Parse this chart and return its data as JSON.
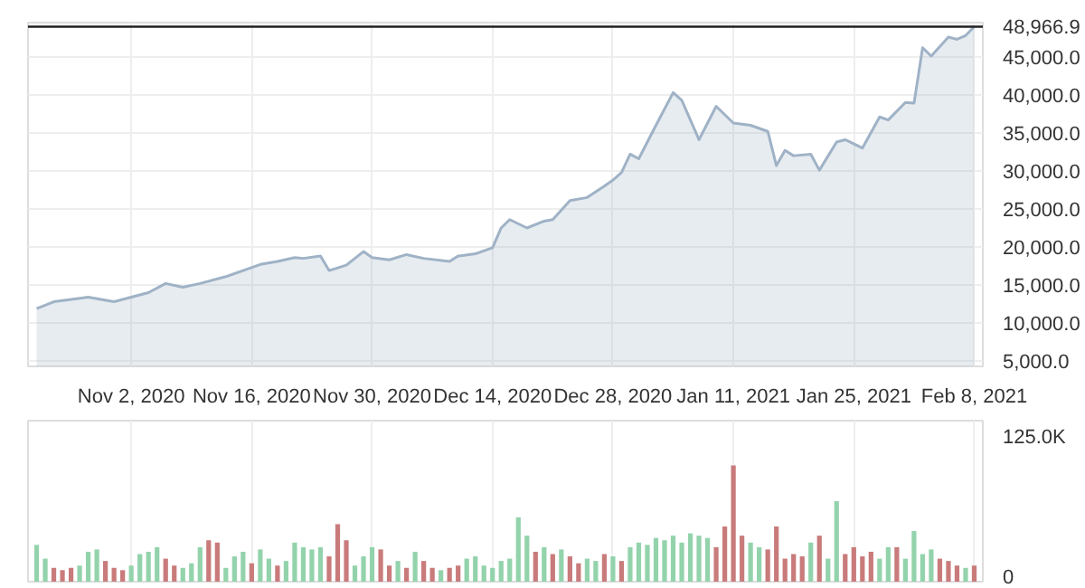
{
  "chart_data": [
    {
      "type": "area",
      "x": [
        "2020-10-22",
        "2020-10-24",
        "2020-10-28",
        "2020-10-31",
        "2020-11-04",
        "2020-11-06",
        "2020-11-08",
        "2020-11-10",
        "2020-11-13",
        "2020-11-17",
        "2020-11-19",
        "2020-11-21",
        "2020-11-22",
        "2020-11-24",
        "2020-11-25",
        "2020-11-27",
        "2020-11-29",
        "2020-11-30",
        "2020-12-02",
        "2020-12-04",
        "2020-12-06",
        "2020-12-09",
        "2020-12-10",
        "2020-12-12",
        "2020-12-14",
        "2020-12-15",
        "2020-12-16",
        "2020-12-18",
        "2020-12-20",
        "2020-12-21",
        "2020-12-23",
        "2020-12-25",
        "2020-12-27",
        "2020-12-28",
        "2020-12-29",
        "2020-12-30",
        "2020-12-31",
        "2021-01-02",
        "2021-01-04",
        "2021-01-05",
        "2021-01-07",
        "2021-01-09",
        "2021-01-11",
        "2021-01-13",
        "2021-01-15",
        "2021-01-16",
        "2021-01-17",
        "2021-01-18",
        "2021-01-20",
        "2021-01-21",
        "2021-01-23",
        "2021-01-24",
        "2021-01-26",
        "2021-01-28",
        "2021-01-29",
        "2021-01-31",
        "2021-02-01",
        "2021-02-02",
        "2021-02-03",
        "2021-02-05",
        "2021-02-06",
        "2021-02-07",
        "2021-02-08"
      ],
      "series": [
        {
          "color": "#9fb2c6",
          "values": [
            11900,
            12800,
            13400,
            12800,
            14000,
            15200,
            14700,
            15200,
            16100,
            17700,
            18100,
            18600,
            18500,
            18800,
            16900,
            17600,
            19400,
            18600,
            18300,
            19000,
            18500,
            18100,
            18800,
            19100,
            19900,
            22500,
            23600,
            22500,
            23400,
            23600,
            26100,
            26500,
            28000,
            28800,
            29800,
            32200,
            31600,
            36000,
            40300,
            39300,
            34100,
            38500,
            36300,
            36000,
            35200,
            30700,
            32700,
            32000,
            32200,
            30100,
            33800,
            34100,
            33000,
            37100,
            36700,
            39000,
            38900,
            46200,
            45100,
            47600,
            47300,
            47800,
            48966.9
          ]
        }
      ],
      "xlim": [
        "2020-10-21",
        "2021-02-09"
      ],
      "xticks": [
        {
          "value": "2020-11-02",
          "label": "Nov 2, 2020"
        },
        {
          "value": "2020-11-16",
          "label": "Nov 16, 2020"
        },
        {
          "value": "2020-11-30",
          "label": "Nov 30, 2020"
        },
        {
          "value": "2020-12-14",
          "label": "Dec 14, 2020"
        },
        {
          "value": "2020-12-28",
          "label": "Dec 28, 2020"
        },
        {
          "value": "2021-01-11",
          "label": "Jan 11, 2021"
        },
        {
          "value": "2021-01-25",
          "label": "Jan 25, 2021"
        },
        {
          "value": "2021-02-08",
          "label": "Feb 8, 2021"
        }
      ],
      "ylim": [
        4300,
        49500
      ],
      "yticks": [
        {
          "value": 5000,
          "label": "5,000.0"
        },
        {
          "value": 10000,
          "label": "10,000.0"
        },
        {
          "value": 15000,
          "label": "15,000.0"
        },
        {
          "value": 20000,
          "label": "20,000.0"
        },
        {
          "value": 25000,
          "label": "25,000.0"
        },
        {
          "value": 30000,
          "label": "30,000.0"
        },
        {
          "value": 35000,
          "label": "35,000.0"
        },
        {
          "value": 40000,
          "label": "40,000.0"
        },
        {
          "value": 45000,
          "label": "45,000.0"
        }
      ],
      "ref_lines": [
        {
          "axis": "y",
          "value": 48966.9,
          "label": "48,966.9",
          "color": "#222222"
        }
      ],
      "grid": true
    },
    {
      "type": "bar",
      "x": [
        "2020-10-22",
        "2020-10-23",
        "2020-10-24",
        "2020-10-25",
        "2020-10-26",
        "2020-10-27",
        "2020-10-28",
        "2020-10-29",
        "2020-10-30",
        "2020-10-31",
        "2020-11-01",
        "2020-11-02",
        "2020-11-03",
        "2020-11-04",
        "2020-11-05",
        "2020-11-06",
        "2020-11-07",
        "2020-11-08",
        "2020-11-09",
        "2020-11-10",
        "2020-11-11",
        "2020-11-12",
        "2020-11-13",
        "2020-11-14",
        "2020-11-15",
        "2020-11-16",
        "2020-11-17",
        "2020-11-18",
        "2020-11-19",
        "2020-11-20",
        "2020-11-21",
        "2020-11-22",
        "2020-11-23",
        "2020-11-24",
        "2020-11-25",
        "2020-11-26",
        "2020-11-27",
        "2020-11-28",
        "2020-11-29",
        "2020-11-30",
        "2020-12-01",
        "2020-12-02",
        "2020-12-03",
        "2020-12-04",
        "2020-12-05",
        "2020-12-06",
        "2020-12-07",
        "2020-12-08",
        "2020-12-09",
        "2020-12-10",
        "2020-12-11",
        "2020-12-12",
        "2020-12-13",
        "2020-12-14",
        "2020-12-15",
        "2020-12-16",
        "2020-12-17",
        "2020-12-18",
        "2020-12-19",
        "2020-12-20",
        "2020-12-21",
        "2020-12-22",
        "2020-12-23",
        "2020-12-24",
        "2020-12-25",
        "2020-12-26",
        "2020-12-27",
        "2020-12-28",
        "2020-12-29",
        "2020-12-30",
        "2020-12-31",
        "2021-01-01",
        "2021-01-02",
        "2021-01-03",
        "2021-01-04",
        "2021-01-05",
        "2021-01-06",
        "2021-01-07",
        "2021-01-08",
        "2021-01-09",
        "2021-01-10",
        "2021-01-11",
        "2021-01-12",
        "2021-01-13",
        "2021-01-14",
        "2021-01-15",
        "2021-01-16",
        "2021-01-17",
        "2021-01-18",
        "2021-01-19",
        "2021-01-20",
        "2021-01-21",
        "2021-01-22",
        "2021-01-23",
        "2021-01-24",
        "2021-01-25",
        "2021-01-26",
        "2021-01-27",
        "2021-01-28",
        "2021-01-29",
        "2021-01-30",
        "2021-01-31",
        "2021-02-01",
        "2021-02-02",
        "2021-02-03",
        "2021-02-04",
        "2021-02-05",
        "2021-02-06",
        "2021-02-07",
        "2021-02-08"
      ],
      "values": [
        32000,
        20000,
        12000,
        10000,
        12000,
        14000,
        26000,
        28000,
        18000,
        12000,
        10000,
        14000,
        24000,
        26000,
        30000,
        20000,
        14000,
        12000,
        16000,
        30000,
        36000,
        34000,
        12000,
        22000,
        26000,
        16000,
        28000,
        20000,
        14000,
        18000,
        34000,
        30000,
        28000,
        30000,
        22000,
        50000,
        36000,
        14000,
        22000,
        30000,
        28000,
        14000,
        18000,
        12000,
        26000,
        18000,
        12000,
        10000,
        12000,
        14000,
        20000,
        22000,
        14000,
        12000,
        18000,
        20000,
        56000,
        40000,
        26000,
        30000,
        24000,
        28000,
        22000,
        16000,
        20000,
        18000,
        24000,
        22000,
        18000,
        30000,
        34000,
        32000,
        38000,
        36000,
        40000,
        34000,
        42000,
        40000,
        38000,
        30000,
        48000,
        101000,
        40000,
        34000,
        30000,
        28000,
        48000,
        20000,
        24000,
        22000,
        34000,
        40000,
        20000,
        70000,
        24000,
        30000,
        22000,
        26000,
        20000,
        30000,
        30000,
        20000,
        44000,
        24000,
        28000,
        20000,
        18000,
        14000,
        12000,
        14000
      ],
      "colors": [
        "#93d3ac",
        "#93d3ac",
        "#c97b7b",
        "#c97b7b",
        "#c97b7b",
        "#93d3ac",
        "#93d3ac",
        "#93d3ac",
        "#c97b7b",
        "#c97b7b",
        "#c97b7b",
        "#93d3ac",
        "#93d3ac",
        "#93d3ac",
        "#93d3ac",
        "#c97b7b",
        "#c97b7b",
        "#93d3ac",
        "#93d3ac",
        "#93d3ac",
        "#c97b7b",
        "#c97b7b",
        "#93d3ac",
        "#93d3ac",
        "#93d3ac",
        "#c97b7b",
        "#93d3ac",
        "#93d3ac",
        "#c97b7b",
        "#93d3ac",
        "#93d3ac",
        "#93d3ac",
        "#93d3ac",
        "#93d3ac",
        "#c97b7b",
        "#c97b7b",
        "#c97b7b",
        "#93d3ac",
        "#93d3ac",
        "#93d3ac",
        "#c97b7b",
        "#c97b7b",
        "#93d3ac",
        "#c97b7b",
        "#93d3ac",
        "#c97b7b",
        "#c97b7b",
        "#93d3ac",
        "#c97b7b",
        "#c97b7b",
        "#93d3ac",
        "#93d3ac",
        "#93d3ac",
        "#93d3ac",
        "#93d3ac",
        "#93d3ac",
        "#93d3ac",
        "#93d3ac",
        "#c97b7b",
        "#93d3ac",
        "#c97b7b",
        "#93d3ac",
        "#c97b7b",
        "#c97b7b",
        "#93d3ac",
        "#93d3ac",
        "#c97b7b",
        "#93d3ac",
        "#c97b7b",
        "#93d3ac",
        "#93d3ac",
        "#93d3ac",
        "#93d3ac",
        "#93d3ac",
        "#93d3ac",
        "#93d3ac",
        "#93d3ac",
        "#93d3ac",
        "#93d3ac",
        "#c97b7b",
        "#c97b7b",
        "#c97b7b",
        "#c97b7b",
        "#93d3ac",
        "#93d3ac",
        "#c97b7b",
        "#c97b7b",
        "#c97b7b",
        "#c97b7b",
        "#c97b7b",
        "#93d3ac",
        "#c97b7b",
        "#93d3ac",
        "#93d3ac",
        "#c97b7b",
        "#c97b7b",
        "#c97b7b",
        "#c97b7b",
        "#93d3ac",
        "#93d3ac",
        "#c97b7b",
        "#93d3ac",
        "#93d3ac",
        "#93d3ac",
        "#93d3ac",
        "#c97b7b",
        "#c97b7b",
        "#c97b7b",
        "#93d3ac",
        "#c97b7b"
      ],
      "xlim": [
        "2020-10-21",
        "2021-02-09"
      ],
      "ylim": [
        0,
        140000
      ],
      "yticks": [
        0,
        {
          "value": 125000,
          "label": "125.0K"
        }
      ],
      "tick_labels": "y",
      "grid": "x"
    }
  ]
}
